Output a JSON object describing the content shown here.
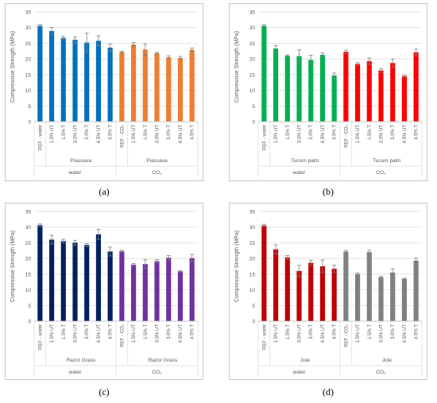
{
  "chart_data": [
    {
      "type": "bar",
      "caption": "(a)",
      "ylabel": "Compressive Strength (MPa)",
      "ylim": [
        0,
        35
      ],
      "yticks": [
        0,
        5,
        10,
        15,
        20,
        25,
        30,
        35
      ],
      "categories": [
        "REF - water",
        "1.5% UT",
        "1.5% T",
        "3.0% UT",
        "3.0% T",
        "4.5% UT",
        "4.5% T",
        "REF - CO₂",
        "1.5% UT",
        "1.5% T",
        "3.0% UT",
        "3.0% T",
        "4.5% UT",
        "4.5% T"
      ],
      "values": [
        30.6,
        28.9,
        26.7,
        26.1,
        25.2,
        25.8,
        23.6,
        22.2,
        24.6,
        23.0,
        21.8,
        20.5,
        20.3,
        22.9
      ],
      "errors": [
        0.4,
        1.2,
        0.5,
        1.0,
        3.0,
        1.6,
        1.2,
        0.3,
        0.6,
        1.8,
        0.3,
        0.5,
        0.5,
        0.6
      ],
      "colors": [
        "#0070c0",
        "#0070c0",
        "#0070c0",
        "#0070c0",
        "#0070c0",
        "#0070c0",
        "#0070c0",
        "#ed7d31",
        "#ed7d31",
        "#ed7d31",
        "#ed7d31",
        "#ed7d31",
        "#ed7d31",
        "#ed7d31"
      ],
      "groups": [
        {
          "label": "Piassava",
          "from": 1,
          "to": 6
        },
        {
          "label": "Piassava",
          "from": 7,
          "to": 13
        }
      ],
      "supergroups": [
        {
          "label": "water",
          "from": 0,
          "to": 6
        },
        {
          "label": "CO₂",
          "from": 7,
          "to": 13
        }
      ],
      "grid": true
    },
    {
      "type": "bar",
      "caption": "(b)",
      "ylabel": "Compressive Strength (MPa)",
      "ylim": [
        0,
        35
      ],
      "yticks": [
        0,
        5,
        10,
        15,
        20,
        25,
        30,
        35
      ],
      "categories": [
        "REF - water",
        "1.5% UT",
        "1.5% T",
        "3.0% UT",
        "3.0% T",
        "4.5% UT",
        "4.5% T",
        "REF - CO₂",
        "1.5% UT",
        "1.5% T",
        "3.0% UT",
        "3.0% T",
        "4.5% UT",
        "4.5% T"
      ],
      "values": [
        30.6,
        23.3,
        21.0,
        20.9,
        19.7,
        21.3,
        14.7,
        22.3,
        18.4,
        19.3,
        16.3,
        18.7,
        14.5,
        22.1
      ],
      "errors": [
        0.4,
        1.0,
        0.3,
        2.0,
        1.5,
        0.6,
        0.8,
        0.5,
        0.4,
        1.0,
        0.6,
        1.3,
        0.3,
        1.0
      ],
      "colors": [
        "#00b050",
        "#00b050",
        "#00b050",
        "#00b050",
        "#00b050",
        "#00b050",
        "#00b050",
        "#ff0000",
        "#ff0000",
        "#ff0000",
        "#ff0000",
        "#ff0000",
        "#ff0000",
        "#ff0000"
      ],
      "groups": [
        {
          "label": "Tucum palm",
          "from": 1,
          "to": 6
        },
        {
          "label": "Tucum palm",
          "from": 8,
          "to": 13
        }
      ],
      "supergroups": [
        {
          "label": "water",
          "from": 0,
          "to": 6
        },
        {
          "label": "CO₂",
          "from": 7,
          "to": 13
        }
      ],
      "grid": true
    },
    {
      "type": "bar",
      "caption": "(c)",
      "ylabel": "Compressive Strength (MPa)",
      "ylim": [
        0,
        35
      ],
      "yticks": [
        0,
        5,
        10,
        15,
        20,
        25,
        30,
        35
      ],
      "categories": [
        "REF - water",
        "1.5% UT",
        "1.5% T",
        "3.0% UT",
        "3.0% T",
        "4.5% UT",
        "4.5% T",
        "REF - CO₂",
        "1.5% UT",
        "1.5% T",
        "3.0% UT",
        "3.0% T",
        "4.5% UT",
        "4.5% T"
      ],
      "values": [
        30.6,
        26.0,
        25.5,
        25.0,
        24.3,
        27.7,
        22.2,
        22.3,
        18.0,
        18.2,
        19.1,
        20.2,
        15.9,
        20.1
      ],
      "errors": [
        0.4,
        1.4,
        0.6,
        0.8,
        0.5,
        1.6,
        1.4,
        0.3,
        0.4,
        1.4,
        0.5,
        0.7,
        0.2,
        1.2
      ],
      "colors": [
        "#002060",
        "#002060",
        "#002060",
        "#002060",
        "#002060",
        "#002060",
        "#002060",
        "#7030a0",
        "#7030a0",
        "#7030a0",
        "#7030a0",
        "#7030a0",
        "#7030a0",
        "#7030a0"
      ],
      "groups": [
        {
          "label": "Razor Grass",
          "from": 1,
          "to": 6
        },
        {
          "label": "Razor Grass",
          "from": 8,
          "to": 13
        }
      ],
      "supergroups": [
        {
          "label": "water",
          "from": 0,
          "to": 6
        },
        {
          "label": "CO₂",
          "from": 7,
          "to": 13
        }
      ],
      "grid": true
    },
    {
      "type": "bar",
      "caption": "(d)",
      "ylabel": "Compressive Strength (MPa)",
      "ylim": [
        0,
        35
      ],
      "yticks": [
        0,
        5,
        10,
        15,
        20,
        25,
        30,
        35
      ],
      "categories": [
        "REF - water",
        "1.5% UT",
        "1.5% T",
        "3.0% UT",
        "3.0% T",
        "4.5% UT",
        "4.5% T",
        "REF - CO₂",
        "1.5% UT",
        "1.5% T",
        "3.0% UT",
        "3.0% T",
        "4.5% UT",
        "4.5% T"
      ],
      "values": [
        30.5,
        22.9,
        20.3,
        16.0,
        18.6,
        17.5,
        16.7,
        22.2,
        15.0,
        22.0,
        14.0,
        15.5,
        13.5,
        19.3
      ],
      "errors": [
        0.4,
        1.5,
        0.6,
        1.8,
        0.8,
        2.0,
        1.2,
        0.4,
        0.4,
        0.6,
        0.3,
        1.2,
        0.2,
        0.8
      ],
      "colors": [
        "#c00000",
        "#c00000",
        "#c00000",
        "#c00000",
        "#c00000",
        "#c00000",
        "#c00000",
        "#808080",
        "#808080",
        "#808080",
        "#808080",
        "#808080",
        "#808080",
        "#808080"
      ],
      "groups": [
        {
          "label": "Jute",
          "from": 1,
          "to": 6
        },
        {
          "label": "Jute",
          "from": 8,
          "to": 13
        }
      ],
      "supergroups": [
        {
          "label": "water",
          "from": 0,
          "to": 6
        },
        {
          "label": "CO₂",
          "from": 7,
          "to": 13
        }
      ],
      "grid": true
    }
  ]
}
